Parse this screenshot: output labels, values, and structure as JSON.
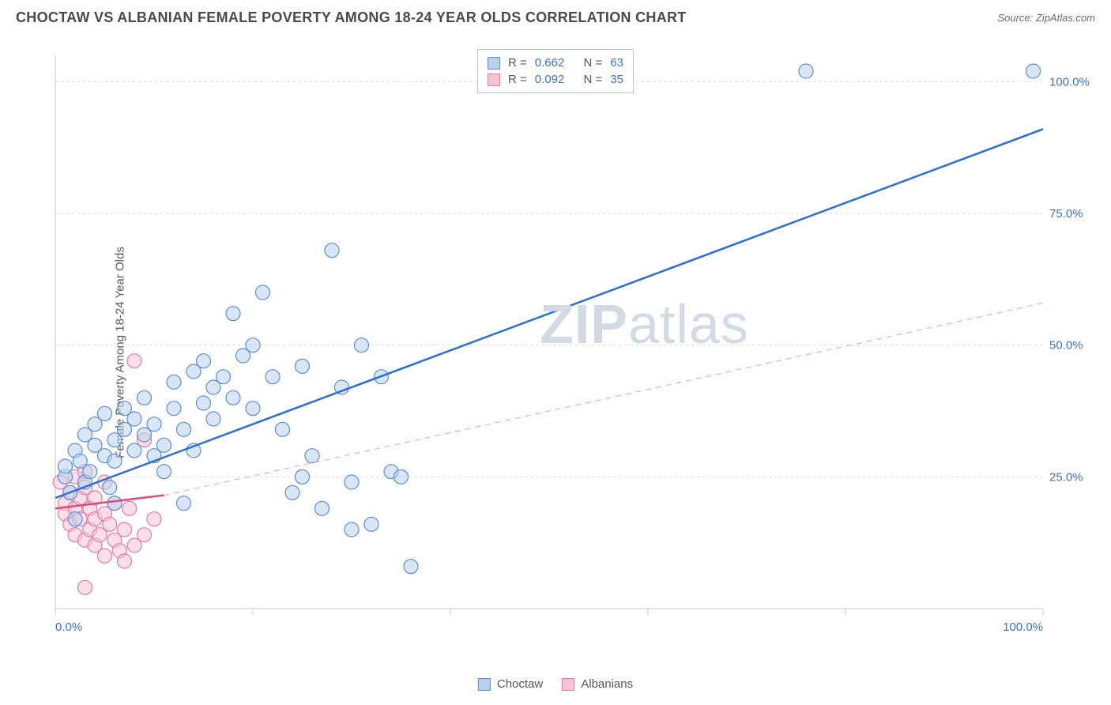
{
  "header": {
    "title": "CHOCTAW VS ALBANIAN FEMALE POVERTY AMONG 18-24 YEAR OLDS CORRELATION CHART",
    "source_prefix": "Source: ",
    "source_name": "ZipAtlas.com"
  },
  "y_axis_label": "Female Poverty Among 18-24 Year Olds",
  "watermark": {
    "bold": "ZIP",
    "light": "atlas"
  },
  "chart": {
    "type": "scatter",
    "background_color": "#ffffff",
    "grid_color": "#d9d9d9",
    "border_color": "#c9c9c9",
    "xlim": [
      0,
      100
    ],
    "ylim": [
      0,
      105
    ],
    "y_gridlines": [
      25,
      50,
      75,
      100
    ],
    "x_ticks": [
      0,
      20,
      40,
      60,
      80,
      100
    ],
    "x_tick_labels": {
      "0": "0.0%",
      "100": "100.0%"
    },
    "y_tick_labels": {
      "25": "25.0%",
      "50": "50.0%",
      "75": "75.0%",
      "100": "100.0%"
    },
    "tick_label_color": "#3b6fd4",
    "tick_label_fontsize": 15,
    "marker_radius": 9,
    "marker_opacity": 0.55,
    "marker_stroke_width": 1.2,
    "series": [
      {
        "name": "Choctaw",
        "color": "#8fb8e8",
        "stroke": "#5a8fd4",
        "fill": "#b8d1ef",
        "r_value": "0.662",
        "n_value": "63",
        "trend": {
          "x1": 0,
          "y1": 21,
          "x2": 100,
          "y2": 91,
          "color": "#2a6fd6",
          "width": 2.5,
          "dash": ""
        },
        "points": [
          [
            1,
            25
          ],
          [
            1,
            27
          ],
          [
            1.5,
            22
          ],
          [
            2,
            30
          ],
          [
            2,
            17
          ],
          [
            2.5,
            28
          ],
          [
            3,
            33
          ],
          [
            3,
            24
          ],
          [
            3.5,
            26
          ],
          [
            4,
            31
          ],
          [
            4,
            35
          ],
          [
            5,
            29
          ],
          [
            5,
            37
          ],
          [
            5.5,
            23
          ],
          [
            6,
            32
          ],
          [
            6,
            28
          ],
          [
            7,
            34
          ],
          [
            7,
            38
          ],
          [
            8,
            30
          ],
          [
            8,
            36
          ],
          [
            9,
            33
          ],
          [
            9,
            40
          ],
          [
            10,
            29
          ],
          [
            10,
            35
          ],
          [
            11,
            31
          ],
          [
            11,
            26
          ],
          [
            12,
            38
          ],
          [
            12,
            43
          ],
          [
            13,
            34
          ],
          [
            14,
            30
          ],
          [
            14,
            45
          ],
          [
            15,
            39
          ],
          [
            15,
            47
          ],
          [
            16,
            42
          ],
          [
            16,
            36
          ],
          [
            17,
            44
          ],
          [
            18,
            40
          ],
          [
            18,
            56
          ],
          [
            19,
            48
          ],
          [
            20,
            50
          ],
          [
            20,
            38
          ],
          [
            21,
            60
          ],
          [
            22,
            44
          ],
          [
            23,
            34
          ],
          [
            24,
            22
          ],
          [
            25,
            25
          ],
          [
            25,
            46
          ],
          [
            26,
            29
          ],
          [
            27,
            19
          ],
          [
            28,
            68
          ],
          [
            29,
            42
          ],
          [
            30,
            24
          ],
          [
            30,
            15
          ],
          [
            31,
            50
          ],
          [
            32,
            16
          ],
          [
            33,
            44
          ],
          [
            34,
            26
          ],
          [
            35,
            25
          ],
          [
            36,
            8
          ],
          [
            13,
            20
          ],
          [
            76,
            102
          ],
          [
            99,
            102
          ],
          [
            6,
            20
          ]
        ]
      },
      {
        "name": "Albanians",
        "color": "#f5a8c0",
        "stroke": "#e77aa0",
        "fill": "#f8c4d5",
        "r_value": "0.092",
        "n_value": "35",
        "trend_solid": {
          "x1": 0,
          "y1": 19,
          "x2": 11,
          "y2": 21.5,
          "color": "#e04a7a",
          "width": 2.5
        },
        "trend_dash": {
          "x1": 11,
          "y1": 21.5,
          "x2": 100,
          "y2": 58,
          "color": "#f5a8c0",
          "width": 1.2,
          "dash": "7,6"
        },
        "points": [
          [
            0.5,
            24
          ],
          [
            1,
            20
          ],
          [
            1,
            18
          ],
          [
            1.5,
            22
          ],
          [
            1.5,
            16
          ],
          [
            2,
            25
          ],
          [
            2,
            19
          ],
          [
            2,
            14
          ],
          [
            2.5,
            21
          ],
          [
            2.5,
            17
          ],
          [
            3,
            23
          ],
          [
            3,
            13
          ],
          [
            3,
            26
          ],
          [
            3.5,
            15
          ],
          [
            3.5,
            19
          ],
          [
            4,
            12
          ],
          [
            4,
            21
          ],
          [
            4,
            17
          ],
          [
            4.5,
            14
          ],
          [
            5,
            18
          ],
          [
            5,
            10
          ],
          [
            5,
            24
          ],
          [
            5.5,
            16
          ],
          [
            6,
            13
          ],
          [
            6,
            20
          ],
          [
            6.5,
            11
          ],
          [
            7,
            15
          ],
          [
            7,
            9
          ],
          [
            7.5,
            19
          ],
          [
            8,
            12
          ],
          [
            8,
            47
          ],
          [
            9,
            14
          ],
          [
            9,
            32
          ],
          [
            10,
            17
          ],
          [
            3,
            4
          ]
        ]
      }
    ]
  },
  "stats_box": {
    "r_label": "R =",
    "n_label": "N ="
  },
  "legend": {
    "items": [
      "Choctaw",
      "Albanians"
    ]
  }
}
